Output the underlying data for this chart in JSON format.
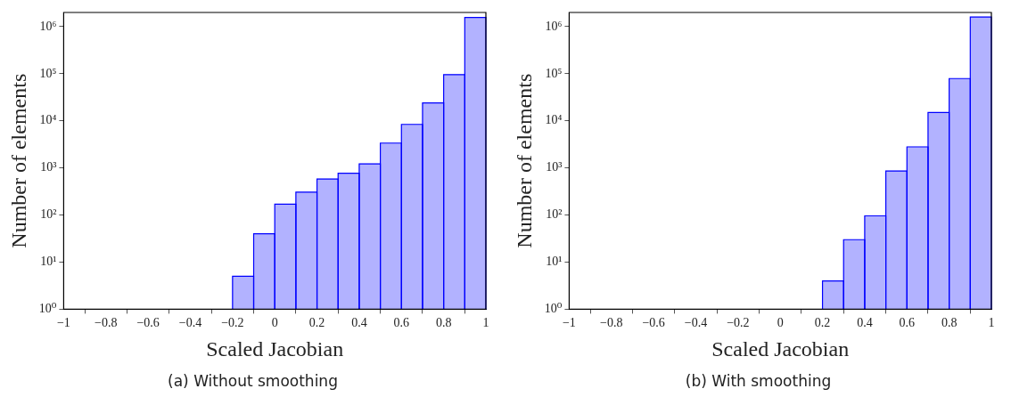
{
  "chart_data": [
    {
      "type": "histogram",
      "xlabel": "Scaled Jacobian",
      "ylabel": "Number of elements",
      "annotations": [
        "(a) Without smoothing"
      ],
      "log": true,
      "grid": false,
      "color": "#0000ff",
      "bins": [
        -0.2,
        -0.1,
        0,
        0.1,
        0.2,
        0.3,
        0.4,
        0.5,
        0.6,
        0.7,
        0.8,
        0.9,
        1
      ],
      "values": [
        5,
        40,
        170,
        305,
        580,
        770,
        1220,
        3370,
        8400,
        24000,
        96000,
        1560000
      ],
      "xlim": [
        -1,
        1
      ],
      "xticks": [
        {
          "value": -1,
          "label": "−1"
        },
        {
          "value": -0.8,
          "label": "−0.8"
        },
        {
          "value": -0.6,
          "label": "−0.6"
        },
        {
          "value": -0.4,
          "label": "−0.4"
        },
        {
          "value": -0.2,
          "label": "−0.2"
        },
        0,
        0.2,
        0.4,
        0.6,
        0.8,
        1
      ],
      "ylim": [
        1,
        2000000
      ],
      "yticks": [
        {
          "value": 1,
          "label": "10⁰"
        },
        {
          "value": 10,
          "label": "10¹"
        },
        {
          "value": 100,
          "label": "10²"
        },
        {
          "value": 1000,
          "label": "10³"
        },
        {
          "value": 10000,
          "label": "10⁴"
        },
        {
          "value": 100000,
          "label": "10⁵"
        },
        {
          "value": 1000000,
          "label": "10⁶"
        }
      ]
    },
    {
      "type": "histogram",
      "xlabel": "Scaled Jacobian",
      "ylabel": "Number of elements",
      "annotations": [
        "(b) With smoothing"
      ],
      "log": true,
      "grid": false,
      "color": "#0000ff",
      "bins": [
        0.2,
        0.3,
        0.4,
        0.5,
        0.6,
        0.7,
        0.8,
        0.9,
        1
      ],
      "values": [
        4,
        30,
        96,
        860,
        2800,
        15000,
        79000,
        1600000
      ],
      "xlim": [
        -1,
        1
      ],
      "xticks": [
        {
          "value": -1,
          "label": "−1"
        },
        {
          "value": -0.8,
          "label": "−0.8"
        },
        {
          "value": -0.6,
          "label": "−0.6"
        },
        {
          "value": -0.4,
          "label": "−0.4"
        },
        {
          "value": -0.2,
          "label": "−0.2"
        },
        0,
        0.2,
        0.4,
        0.6,
        0.8,
        1
      ],
      "ylim": [
        1,
        2000000
      ],
      "yticks": [
        {
          "value": 1,
          "label": "10⁰"
        },
        {
          "value": 10,
          "label": "10¹"
        },
        {
          "value": 100,
          "label": "10²"
        },
        {
          "value": 1000,
          "label": "10³"
        },
        {
          "value": 10000,
          "label": "10⁴"
        },
        {
          "value": 100000,
          "label": "10⁵"
        },
        {
          "value": 1000000,
          "label": "10⁶"
        }
      ]
    }
  ]
}
